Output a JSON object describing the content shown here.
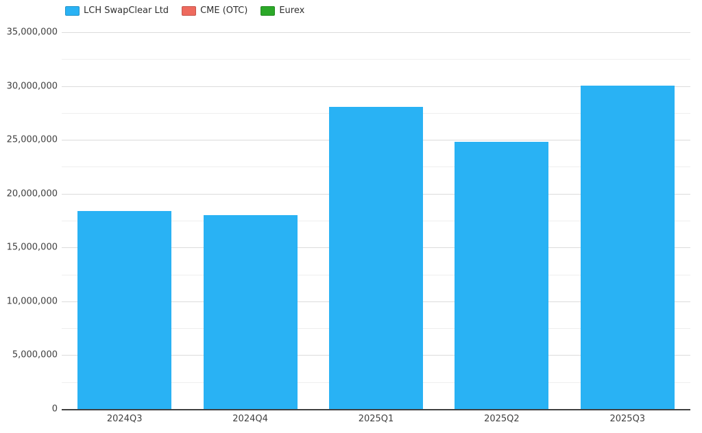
{
  "chart_data": {
    "type": "bar",
    "title": "",
    "xlabel": "",
    "ylabel": "",
    "categories": [
      "2024Q3",
      "2024Q4",
      "2025Q1",
      "2025Q2",
      "2025Q3"
    ],
    "series": [
      {
        "name": "LCH SwapClear Ltd",
        "color": "#29b2f4",
        "values": [
          18400000,
          18000000,
          28050000,
          24800000,
          30050000
        ]
      },
      {
        "name": "CME (OTC)",
        "color": "#ee6a5e",
        "values": [
          0,
          0,
          0,
          0,
          0
        ]
      },
      {
        "name": "Eurex",
        "color": "#2ba828",
        "values": [
          0,
          0,
          0,
          0,
          0
        ]
      }
    ],
    "ylim": [
      0,
      35000000
    ],
    "y_major_step": 5000000,
    "y_minor_step": 2500000,
    "y_tick_labels": [
      "0",
      "5,000,000",
      "10,000,000",
      "15,000,000",
      "20,000,000",
      "25,000,000",
      "30,000,000",
      "35,000,000"
    ],
    "grid": true,
    "legend_position": "top-left",
    "stacked": true
  },
  "colors": {
    "background": "#ffffff",
    "grid_major": "#dbdbdb",
    "grid_minor": "#eeeeee",
    "axis_line": "#3f3f3f",
    "tick_label": "#3f3f3f",
    "legend_text": "#2f2f2f"
  }
}
